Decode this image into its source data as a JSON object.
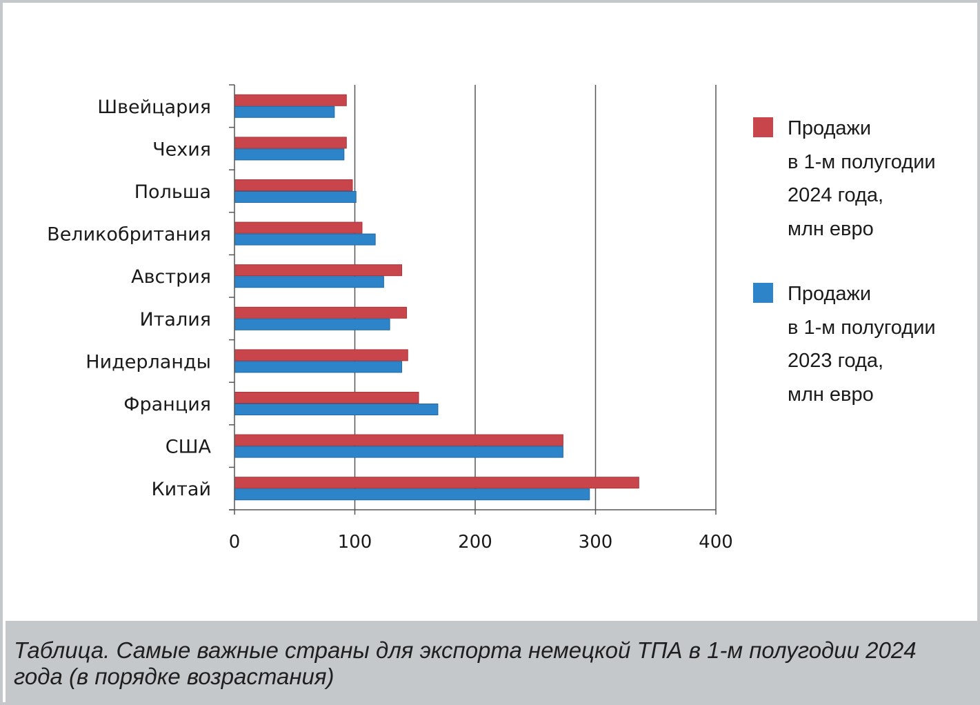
{
  "chart_data": {
    "type": "bar",
    "orientation": "horizontal",
    "categories": [
      "Швейцария",
      "Чехия",
      "Польша",
      "Великобритания",
      "Австрия",
      "Италия",
      "Нидерланды",
      "Франция",
      "США",
      "Китай"
    ],
    "series": [
      {
        "name": "Продажи\nв 1-м полугодии\n2024 года,\nмлн евро",
        "color": "#c8464b",
        "values": [
          93,
          93,
          98,
          106,
          139,
          143,
          144,
          153,
          273,
          336
        ]
      },
      {
        "name": "Продажи\nв 1-м полугодии\n2023 года,\nмлн евро",
        "color": "#2d84c8",
        "values": [
          83,
          91,
          101,
          117,
          124,
          129,
          139,
          169,
          273,
          295
        ]
      }
    ],
    "xlim": [
      0,
      400
    ],
    "xticks": [
      "0",
      "100",
      "200",
      "300",
      "400"
    ],
    "grid": true,
    "legend_position": "right"
  },
  "caption": "Таблица. Самые важные страны для экспорта немецкой ТПА в 1-м полугодии 2024 года (в порядке возрастания)"
}
